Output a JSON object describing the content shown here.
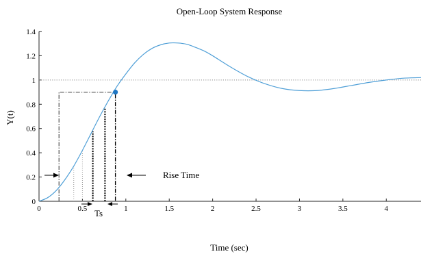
{
  "chart_data": {
    "type": "line",
    "title": "Open-Loop System Response",
    "xlabel": "Time (sec)",
    "ylabel": "Y(t)",
    "xlim": [
      0,
      4.4
    ],
    "ylim": [
      0,
      1.4
    ],
    "x_ticks": [
      0,
      0.5,
      1,
      1.5,
      2,
      2.5,
      3,
      3.5,
      4
    ],
    "x_tick_labels": [
      "0",
      "0.5",
      "1",
      "1.5",
      "2",
      "2.5",
      "3",
      "3.5",
      "4"
    ],
    "y_ticks": [
      0,
      0.2,
      0.4,
      0.6,
      0.8,
      1,
      1.2,
      1.4
    ],
    "y_tick_labels": [
      "0",
      "0.2",
      "0.4",
      "0.6",
      "0.8",
      "1",
      "1.2",
      "1.4"
    ],
    "grid": false,
    "series": [
      {
        "color": "#4f9fd7",
        "x": [
          0,
          0.1,
          0.2,
          0.3,
          0.4,
          0.5,
          0.6,
          0.7,
          0.8,
          0.9,
          1.0,
          1.1,
          1.2,
          1.3,
          1.4,
          1.5,
          1.6,
          1.7,
          1.8,
          1.9,
          2.0,
          2.2,
          2.4,
          2.6,
          2.8,
          3.0,
          3.2,
          3.4,
          3.6,
          3.8,
          4.0,
          4.2,
          4.4
        ],
        "y": [
          0,
          0.03,
          0.09,
          0.18,
          0.29,
          0.42,
          0.56,
          0.7,
          0.83,
          0.95,
          1.05,
          1.14,
          1.21,
          1.26,
          1.29,
          1.305,
          1.305,
          1.295,
          1.27,
          1.24,
          1.2,
          1.11,
          1.03,
          0.97,
          0.93,
          0.913,
          0.913,
          0.93,
          0.955,
          0.98,
          1.0,
          1.015,
          1.02
        ]
      }
    ],
    "reference_line": {
      "y": 1,
      "color": "#888888"
    },
    "marker": {
      "x": 0.88,
      "y": 0.9,
      "color": "#1f77c4"
    },
    "annotations": [
      {
        "text": "Rise Time",
        "x": 1.4,
        "y": 0.31
      },
      {
        "text": "Ts",
        "x": 0.67,
        "y": 0.1
      }
    ]
  }
}
